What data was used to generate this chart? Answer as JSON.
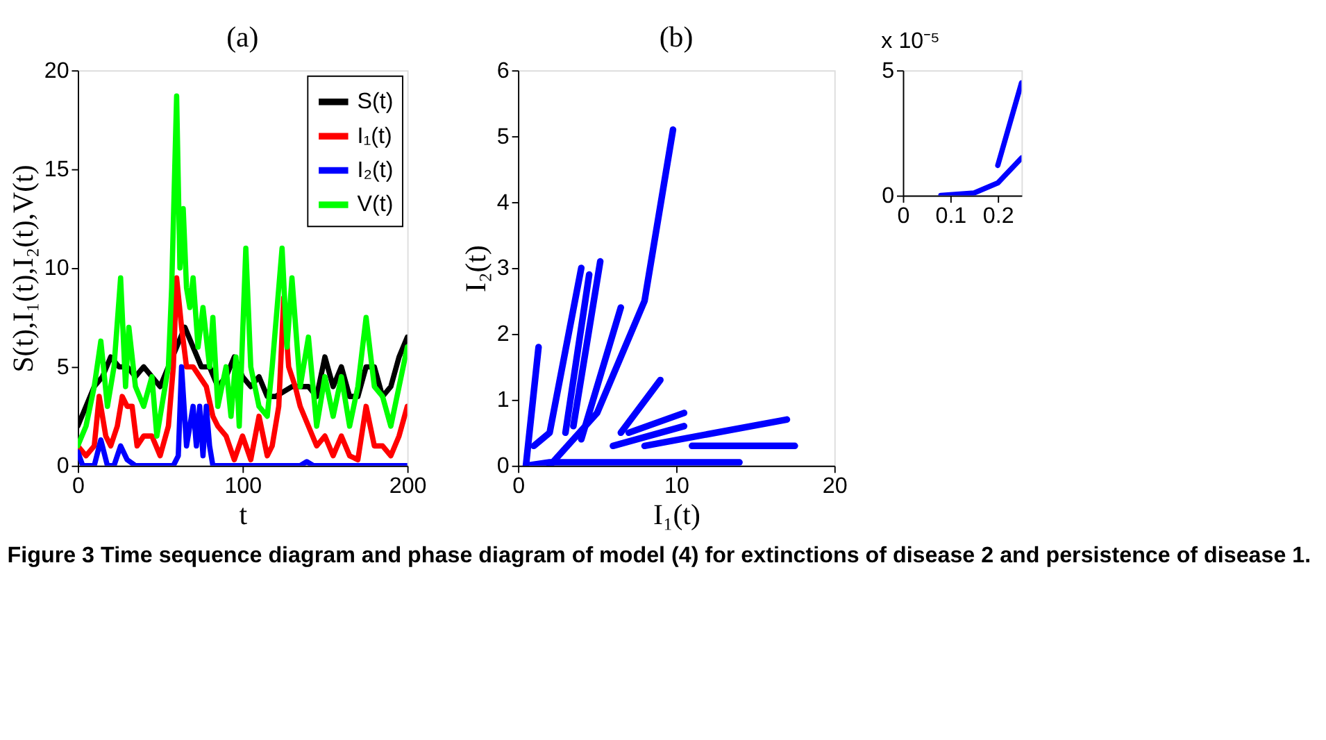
{
  "chart_data": [
    {
      "type": "line",
      "title": "(a)",
      "xlabel": "t",
      "ylabel": "S(t),I₁(t),I₂(t),V(t)",
      "xlim": [
        0,
        200
      ],
      "xticks": [
        0,
        100,
        200
      ],
      "ylim": [
        0,
        20
      ],
      "yticks": [
        0,
        5,
        10,
        15,
        20
      ],
      "grid": false,
      "legend": "top right",
      "marker": "none",
      "line_style": "solid",
      "annotations": [
        "Figure 3  Time sequence diagram and phase diagram of model (4) for extinctions of disease 2 and persistence of disease 1."
      ],
      "series": [
        {
          "name": "S(t)",
          "color": "#000000",
          "x": [
            0,
            5,
            10,
            15,
            20,
            25,
            30,
            35,
            40,
            45,
            50,
            55,
            60,
            65,
            70,
            75,
            80,
            85,
            90,
            95,
            100,
            105,
            110,
            115,
            120,
            130,
            140,
            145,
            150,
            155,
            160,
            165,
            170,
            175,
            180,
            185,
            190,
            195,
            200
          ],
          "values": [
            2,
            3,
            4,
            4.5,
            5.5,
            5,
            5,
            4.5,
            5,
            4.5,
            4,
            5,
            6,
            7,
            6,
            5,
            5,
            4,
            4.5,
            5.5,
            4.5,
            4,
            4.5,
            3.5,
            3.5,
            4,
            4,
            3.5,
            5.5,
            4,
            5,
            3.5,
            3.5,
            5,
            5,
            3.5,
            4,
            5.5,
            6.5
          ]
        },
        {
          "name": "I₁(t)",
          "color": "#ff0000",
          "x": [
            0,
            5,
            10,
            13,
            17,
            20,
            24,
            27,
            30,
            33,
            36,
            40,
            45,
            50,
            55,
            58,
            60,
            63,
            66,
            70,
            74,
            78,
            82,
            85,
            90,
            95,
            100,
            105,
            110,
            115,
            118,
            122,
            125,
            128,
            132,
            135,
            140,
            145,
            150,
            155,
            160,
            165,
            170,
            175,
            180,
            185,
            190,
            195,
            200
          ],
          "values": [
            1,
            0.5,
            1,
            3.5,
            1.5,
            1,
            2,
            3.5,
            3,
            3,
            1,
            1.5,
            1.5,
            0.5,
            2,
            5,
            9.5,
            7,
            5,
            5,
            4.5,
            4,
            2.5,
            2,
            1.5,
            0.3,
            1.5,
            0.3,
            2.5,
            0.5,
            1,
            3,
            8.5,
            5,
            4,
            3,
            2,
            1,
            1.5,
            0.5,
            1.5,
            0.5,
            0.3,
            3,
            1,
            1,
            0.5,
            1.5,
            3
          ]
        },
        {
          "name": "I₂(t)",
          "color": "#0000ff",
          "x": [
            0,
            3,
            10,
            14,
            18,
            22,
            26,
            30,
            35,
            58,
            61,
            63,
            66,
            68,
            70,
            72,
            74,
            76,
            78,
            80,
            82,
            100,
            135,
            139,
            143,
            200
          ],
          "values": [
            0.7,
            0,
            0,
            1.3,
            0,
            0,
            1,
            0.3,
            0,
            0,
            0.5,
            5,
            1,
            2,
            3,
            1,
            3,
            0.5,
            3,
            1,
            0,
            0,
            0,
            0.2,
            0,
            0
          ]
        },
        {
          "name": "V(t)",
          "color": "#00ff00",
          "x": [
            0,
            5,
            10,
            14,
            18,
            22,
            26,
            29,
            31,
            35,
            40,
            45,
            48,
            52,
            55,
            57,
            60,
            62,
            64,
            66,
            68,
            70,
            73,
            76,
            80,
            82,
            85,
            90,
            93,
            96,
            98,
            102,
            105,
            110,
            115,
            118,
            124,
            127,
            130,
            135,
            140,
            145,
            150,
            155,
            160,
            165,
            170,
            175,
            180,
            185,
            190,
            195,
            200
          ],
          "values": [
            1,
            2,
            4,
            6.3,
            3,
            5,
            9.5,
            4,
            7,
            4,
            3,
            4.5,
            1.5,
            3.5,
            5,
            9,
            18.7,
            10,
            13,
            9,
            8,
            9.5,
            6,
            8,
            5,
            7.5,
            3,
            5,
            2.5,
            5.5,
            2,
            11,
            5,
            3,
            2.5,
            5,
            11,
            6,
            9.5,
            4,
            6.5,
            2,
            4.5,
            2.5,
            4.5,
            2,
            4,
            7.5,
            4,
            3.5,
            2,
            4,
            6
          ]
        }
      ]
    },
    {
      "type": "line",
      "title": "(b)",
      "xlabel": "I₁(t)",
      "ylabel": "I₂(t)",
      "xlim": [
        0,
        20
      ],
      "xticks": [
        0,
        10,
        20
      ],
      "ylim": [
        0,
        6
      ],
      "yticks": [
        0,
        1,
        2,
        3,
        4,
        5,
        6
      ],
      "grid": false,
      "legend": false,
      "marker": "none",
      "line_style": "solid",
      "series": [
        {
          "color": "#0000ff",
          "x": [
            0.5,
            1.3
          ],
          "values": [
            0,
            1.8
          ]
        },
        {
          "color": "#0000ff",
          "x": [
            1,
            2,
            4
          ],
          "values": [
            0.3,
            0.5,
            3
          ]
        },
        {
          "color": "#0000ff",
          "x": [
            3,
            4.5
          ],
          "values": [
            0.5,
            2.9
          ]
        },
        {
          "color": "#0000ff",
          "x": [
            3.5,
            5.2
          ],
          "values": [
            0.6,
            3.1
          ]
        },
        {
          "color": "#0000ff",
          "x": [
            4,
            6.5
          ],
          "values": [
            0.4,
            2.4
          ]
        },
        {
          "color": "#0000ff",
          "x": [
            2,
            5,
            8,
            9.8
          ],
          "values": [
            0,
            0.8,
            2.5,
            5.1
          ]
        },
        {
          "color": "#0000ff",
          "x": [
            6.5,
            9
          ],
          "values": [
            0.5,
            1.3
          ]
        },
        {
          "color": "#0000ff",
          "x": [
            7,
            10.5
          ],
          "values": [
            0.5,
            0.8
          ]
        },
        {
          "color": "#0000ff",
          "x": [
            6,
            10.5
          ],
          "values": [
            0.3,
            0.6
          ]
        },
        {
          "color": "#0000ff",
          "x": [
            8,
            17
          ],
          "values": [
            0.3,
            0.7
          ]
        },
        {
          "color": "#0000ff",
          "x": [
            11,
            17.5
          ],
          "values": [
            0.3,
            0.3
          ]
        },
        {
          "color": "#0000ff",
          "x": [
            0.5,
            2,
            14
          ],
          "values": [
            0,
            0.05,
            0.05
          ]
        }
      ]
    },
    {
      "type": "line",
      "xlim": [
        0,
        0.25
      ],
      "xticks": [
        0,
        0.1,
        0.2
      ],
      "ylim": [
        0,
        5
      ],
      "yticks": [
        0,
        5
      ],
      "grid": false,
      "legend": false,
      "marker": "none",
      "line_style": "solid",
      "annotations": [
        "x 10⁻⁵"
      ],
      "series": [
        {
          "color": "#0000ff",
          "x": [
            0.08,
            0.15,
            0.2,
            0.25
          ],
          "values": [
            0,
            0.1,
            0.5,
            1.5
          ]
        },
        {
          "color": "#0000ff",
          "x": [
            0.2,
            0.25
          ],
          "values": [
            1.2,
            4.5
          ]
        }
      ]
    }
  ]
}
